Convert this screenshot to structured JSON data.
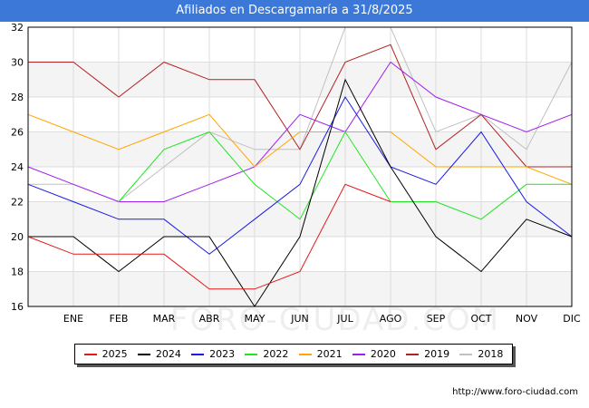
{
  "header": {
    "title": "Afiliados en Descargamaría a 31/8/2025"
  },
  "footer": {
    "url": "http://www.foro-ciudad.com"
  },
  "watermark": "FORO-CIUDAD.COM",
  "chart_data": {
    "type": "line",
    "title": "Afiliados en Descargamaría a 31/8/2025",
    "categories": [
      "",
      "ENE",
      "FEB",
      "MAR",
      "ABR",
      "MAY",
      "JUN",
      "JUL",
      "AGO",
      "SEP",
      "OCT",
      "NOV",
      "DIC"
    ],
    "ylim": [
      16,
      32
    ],
    "yticks": [
      16,
      18,
      20,
      22,
      24,
      26,
      28,
      30,
      32
    ],
    "grid": true,
    "legend_position": "bottom",
    "series": [
      {
        "name": "2025",
        "color": "#e41a1a",
        "values": [
          20,
          19,
          19,
          19,
          17,
          17,
          18,
          23,
          22,
          null,
          null,
          null,
          null
        ]
      },
      {
        "name": "2024",
        "color": "#000000",
        "values": [
          20,
          20,
          18,
          20,
          20,
          16,
          20,
          29,
          24,
          20,
          18,
          21,
          20
        ]
      },
      {
        "name": "2023",
        "color": "#1a1ae4",
        "values": [
          23,
          22,
          21,
          21,
          19,
          21,
          23,
          28,
          24,
          23,
          26,
          22,
          20
        ]
      },
      {
        "name": "2022",
        "color": "#22e422",
        "values": [
          null,
          null,
          22,
          25,
          26,
          23,
          21,
          26,
          22,
          22,
          21,
          23,
          23
        ]
      },
      {
        "name": "2021",
        "color": "#ffa500",
        "values": [
          27,
          26,
          25,
          26,
          27,
          24,
          26,
          26,
          26,
          24,
          24,
          24,
          23
        ]
      },
      {
        "name": "2020",
        "color": "#a020f0",
        "values": [
          24,
          23,
          22,
          22,
          23,
          24,
          27,
          26,
          30,
          28,
          27,
          26,
          27
        ]
      },
      {
        "name": "2019",
        "color": "#b22222",
        "values": [
          30,
          30,
          28,
          30,
          29,
          29,
          25,
          30,
          31,
          25,
          27,
          24,
          24
        ]
      },
      {
        "name": "2018",
        "color": "#c0c0c0",
        "values": [
          23,
          23,
          22,
          24,
          26,
          25,
          25,
          32,
          32,
          26,
          27,
          25,
          30
        ]
      }
    ]
  }
}
